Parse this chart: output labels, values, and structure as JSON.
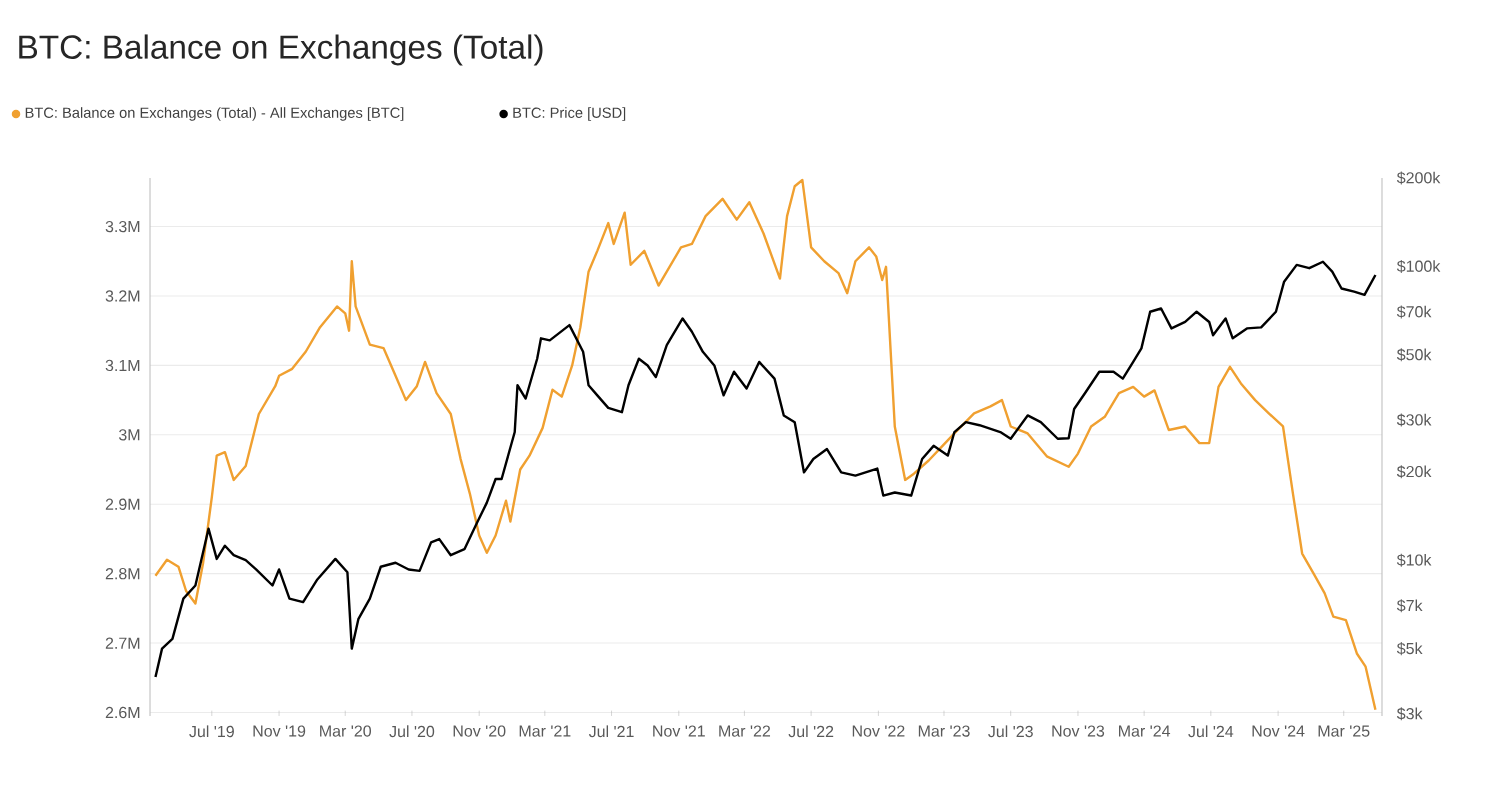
{
  "chart_data": {
    "type": "line",
    "title": "BTC: Balance on Exchanges (Total)",
    "xlim": [
      "2019-03-10",
      "2025-05-10"
    ],
    "xticks": [
      {
        "value": "2019-07-01",
        "label": "Jul '19"
      },
      {
        "value": "2019-11-01",
        "label": "Nov '19"
      },
      {
        "value": "2020-03-01",
        "label": "Mar '20"
      },
      {
        "value": "2020-07-01",
        "label": "Jul '20"
      },
      {
        "value": "2020-11-01",
        "label": "Nov '20"
      },
      {
        "value": "2021-03-01",
        "label": "Mar '21"
      },
      {
        "value": "2021-07-01",
        "label": "Jul '21"
      },
      {
        "value": "2021-11-01",
        "label": "Nov '21"
      },
      {
        "value": "2022-03-01",
        "label": "Mar '22"
      },
      {
        "value": "2022-07-01",
        "label": "Jul '22"
      },
      {
        "value": "2022-11-01",
        "label": "Nov '22"
      },
      {
        "value": "2023-03-01",
        "label": "Mar '23"
      },
      {
        "value": "2023-07-01",
        "label": "Jul '23"
      },
      {
        "value": "2023-11-01",
        "label": "Nov '23"
      },
      {
        "value": "2024-03-01",
        "label": "Mar '24"
      },
      {
        "value": "2024-07-01",
        "label": "Jul '24"
      },
      {
        "value": "2024-11-01",
        "label": "Nov '24"
      },
      {
        "value": "2025-03-01",
        "label": "Mar '25"
      }
    ],
    "ylim": [
      2595000,
      3370000
    ],
    "yticks": [
      {
        "value": 2600000,
        "label": "2.6M"
      },
      {
        "value": 2700000,
        "label": "2.7M"
      },
      {
        "value": 2800000,
        "label": "2.8M"
      },
      {
        "value": 2900000,
        "label": "2.9M"
      },
      {
        "value": 3000000,
        "label": "3M"
      },
      {
        "value": 3100000,
        "label": "3.1M"
      },
      {
        "value": 3200000,
        "label": "3.2M"
      },
      {
        "value": 3300000,
        "label": "3.3M"
      }
    ],
    "y2lim": [
      2950,
      200000
    ],
    "y2ticks": [
      {
        "value": 3000,
        "label": "$3k"
      },
      {
        "value": 5000,
        "label": "$5k"
      },
      {
        "value": 7000,
        "label": "$7k"
      },
      {
        "value": 10000,
        "label": "$10k"
      },
      {
        "value": 20000,
        "label": "$20k"
      },
      {
        "value": 30000,
        "label": "$30k"
      },
      {
        "value": 50000,
        "label": "$50k"
      },
      {
        "value": 70000,
        "label": "$70k"
      },
      {
        "value": 100000,
        "label": "$100k"
      },
      {
        "value": 200000,
        "label": "$200k"
      }
    ],
    "log": "y2",
    "grid": "y",
    "legend": "top left",
    "series": [
      {
        "name": "BTC: Balance on Exchanges (Total) - All Exchanges [BTC]",
        "color": "#f0a030",
        "x": [
          "2019-03-20",
          "2019-04-10",
          "2019-05-01",
          "2019-05-15",
          "2019-06-01",
          "2019-06-15",
          "2019-07-01",
          "2019-07-10",
          "2019-07-25",
          "2019-08-10",
          "2019-09-01",
          "2019-09-25",
          "2019-10-25",
          "2019-11-01",
          "2019-11-25",
          "2019-12-20",
          "2020-01-15",
          "2020-02-15",
          "2020-03-01",
          "2020-03-08",
          "2020-03-13",
          "2020-03-20",
          "2020-04-15",
          "2020-05-10",
          "2020-06-01",
          "2020-06-20",
          "2020-07-10",
          "2020-07-25",
          "2020-08-15",
          "2020-09-10",
          "2020-09-28",
          "2020-10-15",
          "2020-11-01",
          "2020-11-15",
          "2020-12-01",
          "2020-12-20",
          "2020-12-28",
          "2021-01-15",
          "2021-02-01",
          "2021-02-25",
          "2021-03-15",
          "2021-04-01",
          "2021-04-20",
          "2021-05-05",
          "2021-05-20",
          "2021-06-05",
          "2021-06-25",
          "2021-07-05",
          "2021-07-25",
          "2021-08-05",
          "2021-08-30",
          "2021-09-25",
          "2021-10-10",
          "2021-11-05",
          "2021-11-25",
          "2021-12-20",
          "2022-01-20",
          "2022-02-15",
          "2022-03-10",
          "2022-04-05",
          "2022-05-05",
          "2022-05-18",
          "2022-06-01",
          "2022-06-15",
          "2022-07-01",
          "2022-07-25",
          "2022-08-20",
          "2022-09-05",
          "2022-09-20",
          "2022-10-15",
          "2022-10-28",
          "2022-11-08",
          "2022-11-15",
          "2022-12-01",
          "2022-12-20",
          "2023-01-05",
          "2023-02-01",
          "2023-02-25",
          "2023-03-20",
          "2023-04-25",
          "2023-05-25",
          "2023-06-15",
          "2023-07-01",
          "2023-08-01",
          "2023-09-05",
          "2023-10-15",
          "2023-11-01",
          "2023-11-25",
          "2023-12-20",
          "2024-01-15",
          "2024-02-10",
          "2024-03-01",
          "2024-03-20",
          "2024-04-15",
          "2024-05-15",
          "2024-06-10",
          "2024-06-28",
          "2024-07-15",
          "2024-08-05",
          "2024-08-25",
          "2024-09-20",
          "2024-10-15",
          "2024-11-10",
          "2024-11-28",
          "2024-12-15",
          "2025-01-05",
          "2025-01-25",
          "2025-02-10",
          "2025-03-05",
          "2025-03-25",
          "2025-04-10",
          "2025-04-28"
        ],
        "values": [
          2797000,
          2820000,
          2810000,
          2775000,
          2757000,
          2815000,
          2910000,
          2970000,
          2975000,
          2935000,
          2955000,
          3030000,
          3070000,
          3085000,
          3095000,
          3120000,
          3155000,
          3185000,
          3175000,
          3150000,
          3250000,
          3185000,
          3130000,
          3125000,
          3085000,
          3050000,
          3070000,
          3105000,
          3060000,
          3030000,
          2965000,
          2915000,
          2855000,
          2830000,
          2855000,
          2905000,
          2875000,
          2950000,
          2970000,
          3010000,
          3065000,
          3055000,
          3100000,
          3155000,
          3235000,
          3265000,
          3305000,
          3275000,
          3320000,
          3245000,
          3265000,
          3215000,
          3235000,
          3270000,
          3275000,
          3315000,
          3340000,
          3310000,
          3335000,
          3290000,
          3225000,
          3315000,
          3358000,
          3367000,
          3270000,
          3250000,
          3233000,
          3204000,
          3250000,
          3270000,
          3257000,
          3223000,
          3242000,
          3012000,
          2935000,
          2944000,
          2963000,
          2983000,
          3002000,
          3031000,
          3041000,
          3050000,
          3012000,
          3002000,
          2969000,
          2954000,
          2973000,
          3012000,
          3026000,
          3060000,
          3069000,
          3055000,
          3064000,
          3007000,
          3012000,
          2988000,
          2988000,
          3069000,
          3098000,
          3074000,
          3050000,
          3031000,
          3012000,
          2916000,
          2829000,
          2800000,
          2772000,
          2738000,
          2733000,
          2685000,
          2666000,
          2604000
        ]
      },
      {
        "name": "BTC: Price [USD]",
        "color": "#000000",
        "axis": "y2",
        "x": [
          "2019-03-20",
          "2019-04-01",
          "2019-04-20",
          "2019-05-10",
          "2019-06-01",
          "2019-06-25",
          "2019-07-10",
          "2019-07-25",
          "2019-08-10",
          "2019-09-01",
          "2019-09-20",
          "2019-10-20",
          "2019-11-01",
          "2019-11-20",
          "2019-12-15",
          "2020-01-10",
          "2020-02-12",
          "2020-03-05",
          "2020-03-13",
          "2020-03-25",
          "2020-04-15",
          "2020-05-05",
          "2020-06-01",
          "2020-06-25",
          "2020-07-15",
          "2020-08-05",
          "2020-08-20",
          "2020-09-10",
          "2020-10-05",
          "2020-10-28",
          "2020-11-15",
          "2020-12-01",
          "2020-12-12",
          "2021-01-05",
          "2021-01-10",
          "2021-01-25",
          "2021-02-15",
          "2021-02-22",
          "2021-03-10",
          "2021-04-15",
          "2021-05-10",
          "2021-05-20",
          "2021-06-05",
          "2021-06-25",
          "2021-07-20",
          "2021-08-01",
          "2021-08-20",
          "2021-09-05",
          "2021-09-20",
          "2021-10-10",
          "2021-11-08",
          "2021-11-25",
          "2021-12-15",
          "2022-01-05",
          "2022-01-22",
          "2022-02-10",
          "2022-03-05",
          "2022-03-28",
          "2022-04-25",
          "2022-05-12",
          "2022-06-01",
          "2022-06-18",
          "2022-07-05",
          "2022-07-30",
          "2022-08-25",
          "2022-09-20",
          "2022-10-30",
          "2022-11-10",
          "2022-12-01",
          "2022-12-31",
          "2023-01-20",
          "2023-02-10",
          "2023-03-08",
          "2023-03-20",
          "2023-04-10",
          "2023-05-05",
          "2023-06-12",
          "2023-07-01",
          "2023-08-01",
          "2023-08-25",
          "2023-09-25",
          "2023-10-15",
          "2023-10-25",
          "2023-11-15",
          "2023-12-10",
          "2024-01-05",
          "2024-01-22",
          "2024-02-10",
          "2024-02-25",
          "2024-03-12",
          "2024-04-01",
          "2024-04-20",
          "2024-05-15",
          "2024-06-05",
          "2024-06-28",
          "2024-07-05",
          "2024-07-28",
          "2024-08-10",
          "2024-09-05",
          "2024-10-01",
          "2024-10-28",
          "2024-11-12",
          "2024-12-05",
          "2024-12-28",
          "2025-01-22",
          "2025-02-08",
          "2025-02-25",
          "2025-03-20",
          "2025-04-08",
          "2025-04-28"
        ],
        "values": [
          4000,
          5000,
          5400,
          7400,
          8200,
          12800,
          10100,
          11200,
          10400,
          10000,
          9300,
          8200,
          9300,
          7400,
          7200,
          8600,
          10100,
          9100,
          5000,
          6300,
          7400,
          9500,
          9800,
          9300,
          9200,
          11500,
          11800,
          10400,
          10900,
          13400,
          15700,
          18900,
          18900,
          27300,
          39400,
          35500,
          48500,
          56900,
          56000,
          63100,
          51200,
          39400,
          36400,
          33000,
          31900,
          39400,
          48500,
          46000,
          42000,
          54000,
          66500,
          59900,
          51200,
          46000,
          36400,
          43800,
          38400,
          47300,
          41500,
          31100,
          29500,
          19900,
          22100,
          23900,
          19900,
          19400,
          20500,
          16600,
          17000,
          16600,
          22100,
          24500,
          22700,
          27300,
          29500,
          28800,
          27300,
          25900,
          31100,
          29500,
          25900,
          26000,
          32700,
          37300,
          43800,
          43800,
          41500,
          47300,
          52600,
          70100,
          71900,
          61500,
          64700,
          70100,
          64700,
          58300,
          66500,
          56900,
          61500,
          62000,
          70100,
          88700,
          101200,
          98600,
          103700,
          96000,
          84100,
          82000,
          80000,
          93500
        ]
      }
    ]
  }
}
